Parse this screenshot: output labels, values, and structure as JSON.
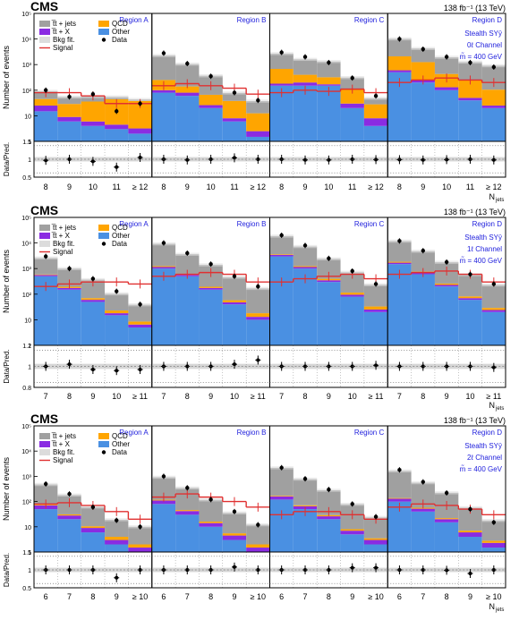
{
  "figure": {
    "lumi_label": "138 fb⁻¹ (13 TeV)",
    "colors": {
      "ttjets": "#a0a0a0",
      "ttX": "#8a2be2",
      "qcd": "#ffa500",
      "other": "#4a90e2",
      "bkgfit": "#dcdcdc",
      "signal": "#e03030",
      "data": "#000000",
      "region_text": "#2222dd"
    }
  },
  "chart_data": [
    {
      "type": "bar",
      "subtype": "stacked-histogram",
      "cms_label": "CMS",
      "lumi_label": "138 fb⁻¹ (13 TeV)",
      "ylabel": "Number of events",
      "ratio_ylabel": "Data/Pred.",
      "xlabel": "N",
      "xlabel_sub": "jets",
      "y_scale": "log",
      "ylim": [
        1,
        100000
      ],
      "y_ticks": [
        "1",
        "10",
        "10²",
        "10³",
        "10⁴",
        "10⁵"
      ],
      "ratio_ylim": [
        0.5,
        1.5
      ],
      "ratio_ticks": [
        "1.5",
        "1",
        "0.5"
      ],
      "legend": {
        "ttjets": "t̅t + jets",
        "ttX": "t̅t + X",
        "bkgfit": "Bkg fit.",
        "signal": "Signal",
        "qcd": "QCD",
        "other": "Other",
        "data": "Data"
      },
      "annotation": [
        "Stealth SYȳ",
        "0ℓ Channel",
        "m̃ = 400 GeV"
      ],
      "regions": [
        {
          "label": "Region A",
          "categories": [
            "8",
            "9",
            "10",
            "11",
            "≥ 12"
          ],
          "other": [
            15,
            6,
            4,
            3,
            2
          ],
          "ttX": [
            10,
            3,
            2,
            1.5,
            1.2
          ],
          "qcd": [
            20,
            20,
            30,
            40,
            35
          ],
          "ttjets": [
            45,
            25,
            20,
            10,
            5
          ],
          "data": [
            100,
            55,
            70,
            15,
            30
          ],
          "signal": [
            80,
            80,
            60,
            30,
            30
          ],
          "ratio": [
            0.97,
            1.0,
            0.94,
            0.78,
            1.05
          ]
        },
        {
          "label": "Region B",
          "categories": [
            "8",
            "9",
            "10",
            "11",
            "≥ 12"
          ],
          "other": [
            80,
            60,
            20,
            6,
            1.5
          ],
          "ttX": [
            20,
            20,
            6,
            2,
            1
          ],
          "qcd": [
            150,
            60,
            40,
            30,
            10
          ],
          "ttjets": [
            2000,
            900,
            300,
            40,
            25
          ],
          "data": [
            2800,
            1100,
            350,
            80,
            40
          ],
          "signal": [
            150,
            180,
            150,
            120,
            70
          ],
          "ratio": [
            1.0,
            0.98,
            1.0,
            1.04,
            1.0
          ]
        },
        {
          "label": "Region C",
          "categories": [
            "8",
            "9",
            "10",
            "11",
            "≥ 12"
          ],
          "other": [
            150,
            150,
            150,
            20,
            4
          ],
          "ttX": [
            30,
            50,
            20,
            10,
            4
          ],
          "qcd": [
            500,
            200,
            150,
            80,
            20
          ],
          "ttjets": [
            2000,
            1200,
            1000,
            200,
            20
          ],
          "data": [
            3000,
            2000,
            1200,
            300,
            60
          ],
          "signal": [
            80,
            100,
            90,
            110,
            80
          ],
          "ratio": [
            1.0,
            0.98,
            0.98,
            1.0,
            0.99
          ]
        },
        {
          "label": "Region D",
          "categories": [
            "8",
            "9",
            "10",
            "11",
            "≥ 12"
          ],
          "other": [
            500,
            200,
            100,
            40,
            20
          ],
          "ttX": [
            100,
            50,
            30,
            10,
            5
          ],
          "qcd": [
            1500,
            1000,
            300,
            200,
            80
          ],
          "ttjets": [
            8000,
            3000,
            1500,
            1000,
            800
          ],
          "data": [
            10000,
            4000,
            2000,
            1200,
            800
          ],
          "signal": [
            200,
            250,
            300,
            250,
            200
          ],
          "ratio": [
            0.99,
            0.98,
            0.99,
            1.0,
            0.98
          ]
        }
      ]
    },
    {
      "type": "bar",
      "subtype": "stacked-histogram",
      "cms_label": "CMS",
      "lumi_label": "138 fb⁻¹ (13 TeV)",
      "ylabel": "Number of events",
      "ratio_ylabel": "Data/Pred.",
      "xlabel": "N",
      "xlabel_sub": "jets",
      "y_scale": "log",
      "ylim": [
        1,
        100000
      ],
      "y_ticks": [
        "1",
        "10",
        "10²",
        "10³",
        "10⁴",
        "10⁵"
      ],
      "ratio_ylim": [
        0.8,
        1.2
      ],
      "ratio_ticks": [
        "1.2",
        "1",
        "0.8"
      ],
      "legend": {
        "ttjets": "t̅t + jets",
        "ttX": "t̅t + X",
        "bkgfit": "Bkg fit.",
        "signal": "Signal",
        "qcd": "QCD",
        "other": "Other",
        "data": "Data"
      },
      "annotation": [
        "Stealth SYȳ",
        "1ℓ Channel",
        "m̃ = 400 GeV"
      ],
      "regions": [
        {
          "label": "Region A",
          "categories": [
            "7",
            "8",
            "9",
            "10",
            "≥ 11"
          ],
          "other": [
            500,
            150,
            50,
            15,
            5
          ],
          "ttX": [
            60,
            25,
            10,
            3,
            1.5
          ],
          "qcd": [
            30,
            20,
            10,
            5,
            2
          ],
          "ttjets": [
            2000,
            800,
            300,
            80,
            30
          ],
          "data": [
            3000,
            1000,
            400,
            130,
            40
          ],
          "signal": [
            200,
            250,
            300,
            300,
            250
          ],
          "ratio": [
            1.0,
            1.02,
            0.97,
            0.96,
            0.97
          ]
        },
        {
          "label": "Region B",
          "categories": [
            "7",
            "8",
            "9",
            "10",
            "≥ 11"
          ],
          "other": [
            1000,
            500,
            150,
            40,
            10
          ],
          "ttX": [
            150,
            70,
            25,
            8,
            3
          ],
          "qcd": [
            100,
            50,
            20,
            10,
            5
          ],
          "ttjets": [
            8000,
            3000,
            1200,
            400,
            150
          ],
          "data": [
            10000,
            4000,
            1500,
            500,
            200
          ],
          "signal": [
            500,
            600,
            700,
            600,
            300
          ],
          "ratio": [
            1.0,
            1.0,
            1.0,
            1.02,
            1.06
          ]
        },
        {
          "label": "Region C",
          "categories": [
            "7",
            "8",
            "9",
            "10",
            "≥ 11"
          ],
          "other": [
            3000,
            1000,
            300,
            80,
            20
          ],
          "ttX": [
            400,
            150,
            50,
            15,
            5
          ],
          "qcd": [
            200,
            100,
            50,
            20,
            8
          ],
          "ttjets": [
            15000,
            6000,
            2000,
            600,
            200
          ],
          "data": [
            20000,
            8000,
            2500,
            800,
            250
          ],
          "signal": [
            300,
            400,
            500,
            600,
            400
          ],
          "ratio": [
            1.0,
            1.0,
            1.0,
            1.0,
            1.01
          ]
        },
        {
          "label": "Region D",
          "categories": [
            "7",
            "8",
            "9",
            "10",
            "≥ 11"
          ],
          "other": [
            1500,
            600,
            200,
            60,
            20
          ],
          "ttX": [
            200,
            80,
            30,
            10,
            4
          ],
          "qcd": [
            150,
            80,
            30,
            12,
            5
          ],
          "ttjets": [
            10000,
            4000,
            1500,
            500,
            200
          ],
          "data": [
            12000,
            5000,
            1800,
            600,
            250
          ],
          "signal": [
            600,
            700,
            800,
            600,
            300
          ],
          "ratio": [
            1.0,
            1.0,
            1.0,
            1.0,
            0.99
          ]
        }
      ]
    },
    {
      "type": "bar",
      "subtype": "stacked-histogram",
      "cms_label": "CMS",
      "lumi_label": "138 fb⁻¹ (13 TeV)",
      "ylabel": "Number of events",
      "ratio_ylabel": "Data/Pred.",
      "xlabel": "N",
      "xlabel_sub": "jets",
      "y_scale": "log",
      "ylim": [
        1,
        100000
      ],
      "y_ticks": [
        "1",
        "10",
        "10²",
        "10³",
        "10⁴",
        "10⁵"
      ],
      "ratio_ylim": [
        0.5,
        1.5
      ],
      "ratio_ticks": [
        "1.5",
        "1",
        "0.5"
      ],
      "legend": {
        "ttjets": "t̅t + jets",
        "ttX": "t̅t + X",
        "bkgfit": "Bkg fit.",
        "signal": "Signal",
        "qcd": "QCD",
        "other": "Other",
        "data": "Data"
      },
      "annotation": [
        "Stealth SYȳ",
        "2ℓ Channel",
        "m̃ = 400 GeV"
      ],
      "regions": [
        {
          "label": "Region A",
          "categories": [
            "6",
            "7",
            "8",
            "9",
            "≥ 10"
          ],
          "other": [
            50,
            20,
            6,
            2,
            1
          ],
          "ttX": [
            20,
            8,
            3,
            1,
            0.5
          ],
          "qcd": [
            5,
            3,
            1.5,
            1,
            0.5
          ],
          "ttjets": [
            400,
            150,
            50,
            15,
            8
          ],
          "data": [
            500,
            200,
            60,
            18,
            10
          ],
          "signal": [
            80,
            90,
            70,
            40,
            20
          ],
          "ratio": [
            1.0,
            1.0,
            1.0,
            0.78,
            1.0
          ]
        },
        {
          "label": "Region B",
          "categories": [
            "6",
            "7",
            "8",
            "9",
            "≥ 10"
          ],
          "other": [
            80,
            30,
            10,
            3,
            1
          ],
          "ttX": [
            30,
            12,
            4,
            1.5,
            0.5
          ],
          "qcd": [
            8,
            4,
            2,
            1,
            0.5
          ],
          "ttjets": [
            800,
            300,
            100,
            30,
            10
          ],
          "data": [
            1000,
            350,
            120,
            40,
            12
          ],
          "signal": [
            150,
            200,
            150,
            100,
            60
          ],
          "ratio": [
            1.0,
            1.0,
            1.0,
            1.08,
            1.0
          ]
        },
        {
          "label": "Region C",
          "categories": [
            "6",
            "7",
            "8",
            "9",
            "≥ 10"
          ],
          "other": [
            120,
            50,
            20,
            5,
            2
          ],
          "ttX": [
            40,
            15,
            6,
            2,
            1
          ],
          "qcd": [
            10,
            6,
            3,
            1,
            0.5
          ],
          "ttjets": [
            2000,
            700,
            250,
            70,
            20
          ],
          "data": [
            2200,
            800,
            300,
            80,
            25
          ],
          "signal": [
            30,
            40,
            40,
            30,
            20
          ],
          "ratio": [
            1.0,
            1.0,
            1.0,
            1.06,
            1.06
          ]
        },
        {
          "label": "Region D",
          "categories": [
            "6",
            "7",
            "8",
            "9",
            "≥ 10"
          ],
          "other": [
            100,
            40,
            15,
            4,
            1.5
          ],
          "ttX": [
            30,
            12,
            5,
            2,
            0.8
          ],
          "qcd": [
            8,
            5,
            2,
            1,
            0.5
          ],
          "ttjets": [
            1500,
            500,
            200,
            50,
            15
          ],
          "data": [
            1800,
            600,
            220,
            50,
            15
          ],
          "signal": [
            60,
            80,
            70,
            50,
            30
          ],
          "ratio": [
            1.0,
            1.0,
            0.99,
            0.9,
            1.0
          ]
        }
      ]
    }
  ]
}
